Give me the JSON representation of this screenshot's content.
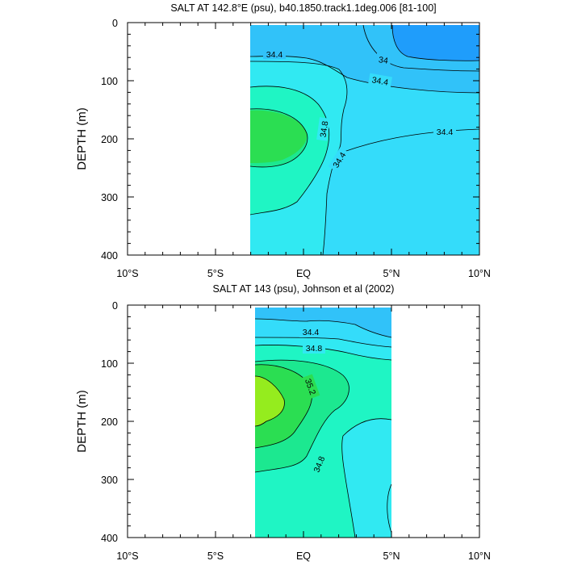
{
  "chart_data": [
    {
      "type": "contour",
      "title": "SALT AT 142.8°E (psu), b40.1850.track1.1deg.006 [81-100]",
      "ylabel": "DEPTH (m)",
      "xlim": [
        -10,
        10
      ],
      "ylim": [
        400,
        0
      ],
      "x_ticks": [
        "10°S",
        "5°S",
        "EQ",
        "5°N",
        "10°N"
      ],
      "y_ticks": [
        "0",
        "100",
        "200",
        "300",
        "400"
      ],
      "data_x_extent": [
        -3.1,
        10
      ],
      "data_y_extent": [
        5,
        400
      ],
      "contour_labels": [
        "34.4",
        "34",
        "34.4",
        "34.8",
        "34.4",
        "34.4"
      ],
      "contour_levels": [
        34,
        34.2,
        34.4,
        34.6,
        34.8,
        35.0
      ],
      "grid": false
    },
    {
      "type": "contour",
      "title": "SALT AT 143 (psu), Johnson et al (2002)",
      "ylabel": "DEPTH (m)",
      "xlim": [
        -10,
        10
      ],
      "ylim": [
        400,
        0
      ],
      "x_ticks": [
        "10°S",
        "5°S",
        "EQ",
        "5°N",
        "10°N"
      ],
      "y_ticks": [
        "0",
        "100",
        "200",
        "300",
        "400"
      ],
      "data_x_extent": [
        -2.8,
        5
      ],
      "data_y_extent": [
        5,
        400
      ],
      "contour_labels": [
        "34.4",
        "34.8",
        "35.2",
        "34.8"
      ],
      "contour_levels": [
        34.2,
        34.4,
        34.6,
        34.8,
        35.0,
        35.2,
        35.4
      ],
      "grid": false
    }
  ],
  "colors": {
    "level_34_0": "#1f9dfb",
    "level_34_2": "#31c2f9",
    "level_34_4": "#34dcfa",
    "level_34_6": "#31e9f2",
    "level_34_8": "#1ff5c4",
    "level_35_0": "#1ce890",
    "level_35_2": "#2bde52",
    "level_35_4": "#95ec1e"
  }
}
